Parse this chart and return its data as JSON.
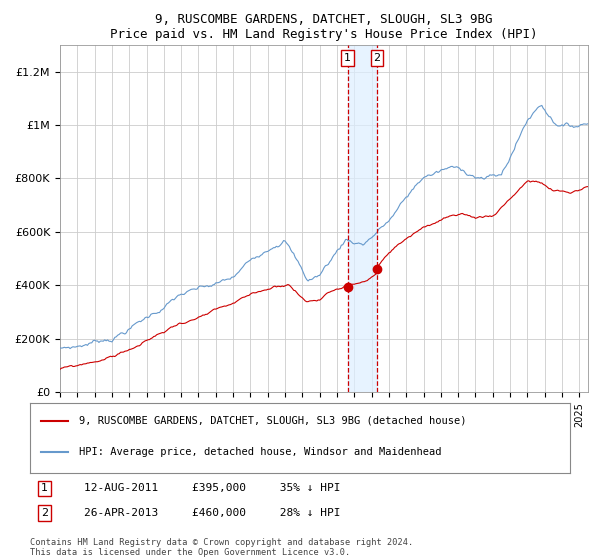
{
  "title": "9, RUSCOMBE GARDENS, DATCHET, SLOUGH, SL3 9BG",
  "subtitle": "Price paid vs. HM Land Registry's House Price Index (HPI)",
  "legend_line1": "9, RUSCOMBE GARDENS, DATCHET, SLOUGH, SL3 9BG (detached house)",
  "legend_line2": "HPI: Average price, detached house, Windsor and Maidenhead",
  "footer": "Contains HM Land Registry data © Crown copyright and database right 2024.\nThis data is licensed under the Open Government Licence v3.0.",
  "event1_date": 2011.62,
  "event1_label": "12-AUG-2011",
  "event1_price": 395000,
  "event1_pct": "35% ↓ HPI",
  "event2_date": 2013.32,
  "event2_label": "26-APR-2013",
  "event2_price": 460000,
  "event2_pct": "28% ↓ HPI",
  "red_color": "#cc0000",
  "blue_color": "#6699cc",
  "shade_color": "#ddeeff",
  "dashed_color": "#cc0000",
  "bg_color": "#ffffff",
  "grid_color": "#cccccc",
  "ylim_max": 1300000,
  "xlim_start": 1995.0,
  "xlim_end": 2025.5
}
